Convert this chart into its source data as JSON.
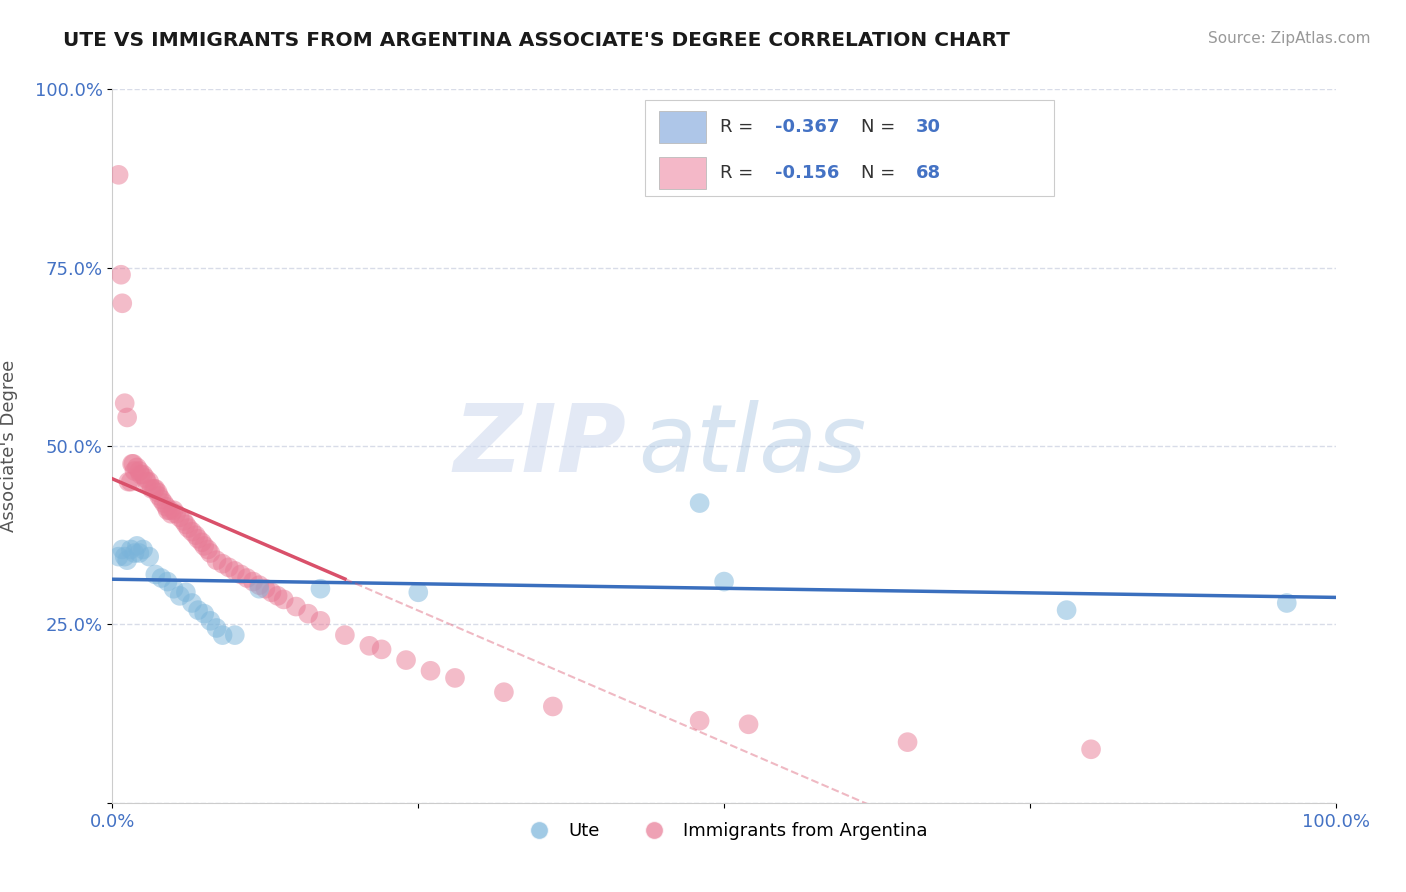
{
  "title": "UTE VS IMMIGRANTS FROM ARGENTINA ASSOCIATE'S DEGREE CORRELATION CHART",
  "source": "Source: ZipAtlas.com",
  "ylabel": "Associate's Degree",
  "xlim": [
    0.0,
    1.0
  ],
  "ylim": [
    0.0,
    1.0
  ],
  "yticks": [
    0.0,
    0.25,
    0.5,
    0.75,
    1.0
  ],
  "ytick_labels": [
    "",
    "25.0%",
    "50.0%",
    "75.0%",
    "100.0%"
  ],
  "legend_label1_r": "-0.367",
  "legend_label1_n": "30",
  "legend_label2_r": "-0.156",
  "legend_label2_n": "68",
  "legend_color1": "#aec6e8",
  "legend_color2": "#f4b8c8",
  "watermark": "ZIPatlas",
  "ute_color": "#7ab4da",
  "arg_color": "#e87a95",
  "ute_line_color": "#3a6fbe",
  "arg_line_color": "#d9506a",
  "background_color": "#ffffff",
  "grid_color": "#d8dce8",
  "ute_scatter_x": [
    0.005,
    0.008,
    0.01,
    0.012,
    0.015,
    0.018,
    0.02,
    0.022,
    0.025,
    0.03,
    0.035,
    0.04,
    0.045,
    0.05,
    0.055,
    0.06,
    0.065,
    0.07,
    0.075,
    0.08,
    0.085,
    0.09,
    0.1,
    0.12,
    0.17,
    0.25,
    0.48,
    0.5,
    0.78,
    0.96
  ],
  "ute_scatter_y": [
    0.345,
    0.355,
    0.345,
    0.34,
    0.355,
    0.35,
    0.36,
    0.35,
    0.355,
    0.345,
    0.32,
    0.315,
    0.31,
    0.3,
    0.29,
    0.295,
    0.28,
    0.27,
    0.265,
    0.255,
    0.245,
    0.235,
    0.235,
    0.3,
    0.3,
    0.295,
    0.42,
    0.31,
    0.27,
    0.28
  ],
  "arg_scatter_x": [
    0.005,
    0.007,
    0.008,
    0.01,
    0.012,
    0.013,
    0.015,
    0.016,
    0.017,
    0.018,
    0.02,
    0.022,
    0.023,
    0.025,
    0.027,
    0.028,
    0.03,
    0.032,
    0.034,
    0.035,
    0.037,
    0.038,
    0.04,
    0.042,
    0.044,
    0.045,
    0.047,
    0.048,
    0.05,
    0.052,
    0.055,
    0.058,
    0.06,
    0.062,
    0.065,
    0.068,
    0.07,
    0.073,
    0.075,
    0.078,
    0.08,
    0.085,
    0.09,
    0.095,
    0.1,
    0.105,
    0.11,
    0.115,
    0.12,
    0.125,
    0.13,
    0.135,
    0.14,
    0.15,
    0.16,
    0.17,
    0.19,
    0.21,
    0.22,
    0.24,
    0.26,
    0.28,
    0.32,
    0.36,
    0.48,
    0.52,
    0.65,
    0.8
  ],
  "arg_scatter_y": [
    0.88,
    0.74,
    0.7,
    0.56,
    0.54,
    0.45,
    0.45,
    0.475,
    0.475,
    0.465,
    0.47,
    0.465,
    0.46,
    0.46,
    0.455,
    0.45,
    0.45,
    0.44,
    0.44,
    0.44,
    0.435,
    0.43,
    0.425,
    0.42,
    0.415,
    0.41,
    0.41,
    0.405,
    0.41,
    0.405,
    0.4,
    0.395,
    0.39,
    0.385,
    0.38,
    0.375,
    0.37,
    0.365,
    0.36,
    0.355,
    0.35,
    0.34,
    0.335,
    0.33,
    0.325,
    0.32,
    0.315,
    0.31,
    0.305,
    0.3,
    0.295,
    0.29,
    0.285,
    0.275,
    0.265,
    0.255,
    0.235,
    0.22,
    0.215,
    0.2,
    0.185,
    0.175,
    0.155,
    0.135,
    0.115,
    0.11,
    0.085,
    0.075
  ]
}
